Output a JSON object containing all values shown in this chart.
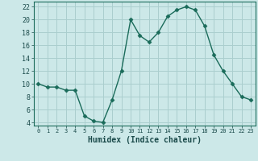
{
  "x": [
    0,
    1,
    2,
    3,
    4,
    5,
    6,
    7,
    8,
    9,
    10,
    11,
    12,
    13,
    14,
    15,
    16,
    17,
    18,
    19,
    20,
    21,
    22,
    23
  ],
  "y": [
    10,
    9.5,
    9.5,
    9.0,
    9.0,
    5.0,
    4.2,
    4.0,
    7.5,
    12.0,
    20.0,
    17.5,
    16.5,
    18.0,
    20.5,
    21.5,
    22.0,
    21.5,
    19.0,
    14.5,
    12.0,
    10.0,
    8.0,
    7.5
  ],
  "xlabel": "Humidex (Indice chaleur)",
  "xlim": [
    -0.5,
    23.5
  ],
  "ylim": [
    3.5,
    22.8
  ],
  "yticks": [
    4,
    6,
    8,
    10,
    12,
    14,
    16,
    18,
    20,
    22
  ],
  "xticks": [
    0,
    1,
    2,
    3,
    4,
    5,
    6,
    7,
    8,
    9,
    10,
    11,
    12,
    13,
    14,
    15,
    16,
    17,
    18,
    19,
    20,
    21,
    22,
    23
  ],
  "bg_color": "#cce8e8",
  "grid_color": "#aacece",
  "line_color": "#1a6b5a",
  "marker_color": "#1a6b5a"
}
